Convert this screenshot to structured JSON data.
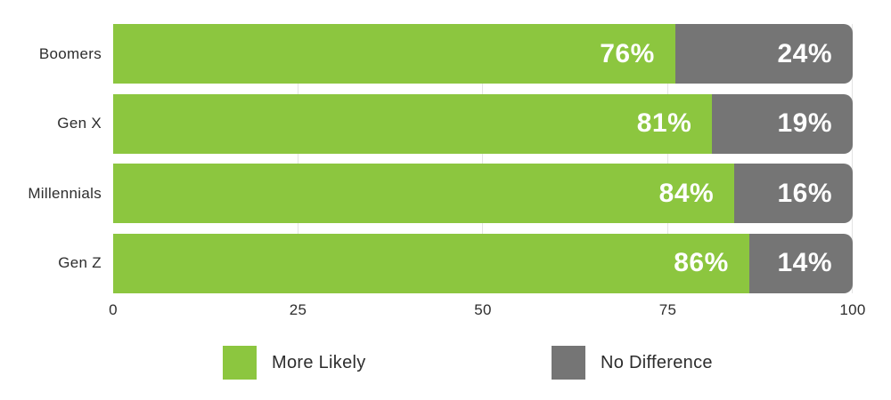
{
  "chart_data": {
    "type": "bar",
    "orientation": "horizontal",
    "stacked": true,
    "title": "",
    "xlabel": "",
    "ylabel": "",
    "xlim": [
      0,
      100
    ],
    "grid": "vertical",
    "legend_position": "bottom",
    "categories": [
      "Boomers",
      "Gen X",
      "Millennials",
      "Gen Z"
    ],
    "series": [
      {
        "name": "More Likely",
        "color": "#8CC63F",
        "values": [
          76,
          81,
          84,
          86
        ],
        "labels": [
          "76%",
          "81%",
          "84%",
          "86%"
        ]
      },
      {
        "name": "No Difference",
        "color": "#757575",
        "values": [
          24,
          19,
          16,
          14
        ],
        "labels": [
          "24%",
          "19%",
          "16%",
          "14%"
        ]
      }
    ],
    "x_ticks": [
      "0",
      "25",
      "50",
      "75",
      "100"
    ]
  },
  "colors": {
    "background": "#ffffff",
    "grid": "#e4e4e4",
    "bar_label_text": "#ffffff",
    "axis_text": "#2d2d2d"
  }
}
